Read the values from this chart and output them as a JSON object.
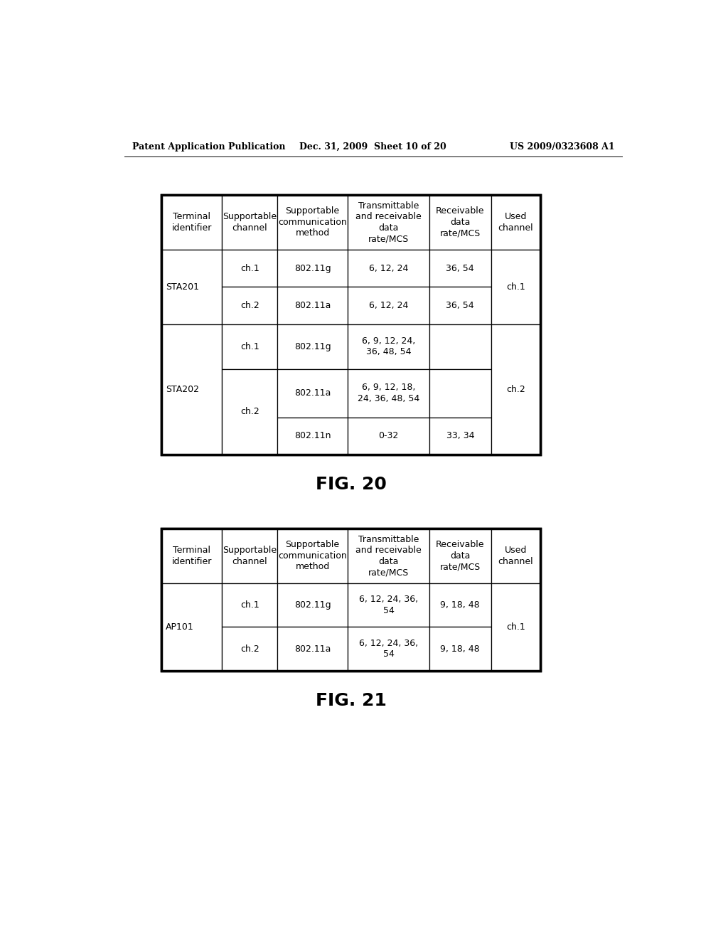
{
  "header_text_left": "Patent Application Publication",
  "header_text_mid": "Dec. 31, 2009  Sheet 10 of 20",
  "header_text_right": "US 2009/0323608 A1",
  "fig20_label": "FIG. 20",
  "fig21_label": "FIG. 21",
  "table_headers": [
    "Terminal\nidentifier",
    "Supportable\nchannel",
    "Supportable\ncommunication\nmethod",
    "Transmittable\nand receivable\ndata\nrate/MCS",
    "Receivable\ndata\nrate/MCS",
    "Used\nchannel"
  ],
  "background_color": "#ffffff",
  "text_color": "#000000",
  "line_color": "#000000"
}
